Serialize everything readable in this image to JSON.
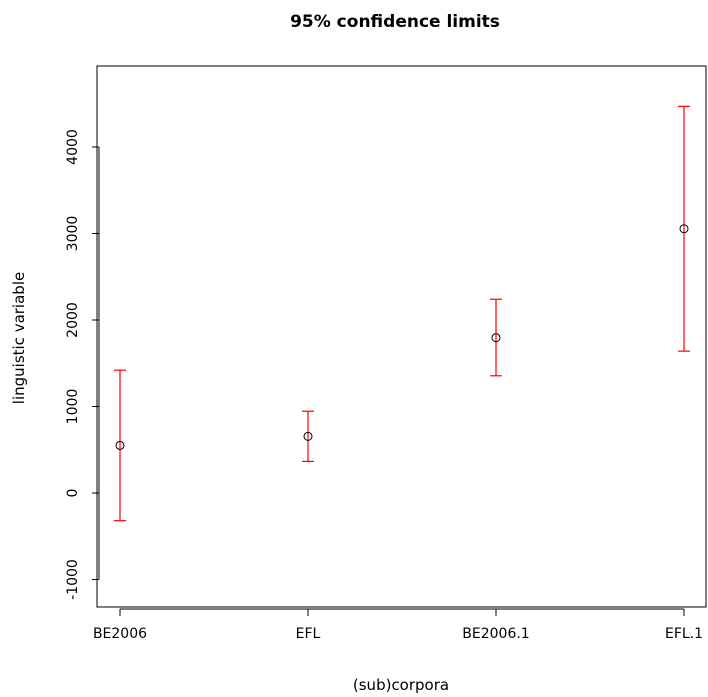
{
  "chart_data": {
    "type": "scatter",
    "title": "95% confidence limits",
    "xlabel": "(sub)corpora",
    "ylabel": "linguistic variable",
    "categories": [
      "BE2006",
      "EFL",
      "BE2006.1",
      "EFL.1"
    ],
    "y_ticks": [
      -1000,
      0,
      1000,
      2000,
      3000,
      4000
    ],
    "y_tick_labels": [
      "-1000",
      "0",
      "1000",
      "2000",
      "3000",
      "4000"
    ],
    "ylim": [
      -1320,
      4900
    ],
    "series": [
      {
        "points": [
          {
            "category": "BE2006",
            "mean": 550,
            "lower": -320,
            "upper": 1420
          },
          {
            "category": "EFL",
            "mean": 655,
            "lower": 365,
            "upper": 945
          },
          {
            "category": "BE2006.1",
            "mean": 1795,
            "lower": 1355,
            "upper": 2240
          },
          {
            "category": "EFL.1",
            "mean": 3055,
            "lower": 1640,
            "upper": 4470
          }
        ]
      }
    ],
    "grid": false,
    "colors": {
      "error_bar": "#ff0000",
      "point": "#000000",
      "axis": "#000000"
    }
  }
}
